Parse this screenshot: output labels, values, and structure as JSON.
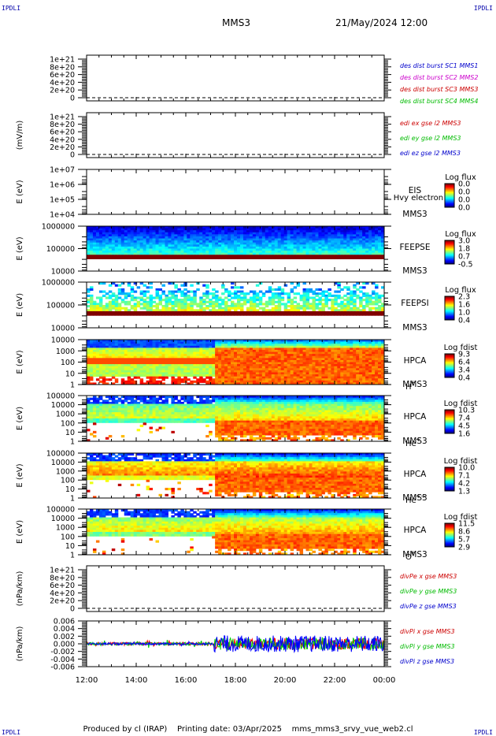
{
  "header": {
    "corner_tl": "IPDLI",
    "corner_tr": "IPDLI",
    "corner_bl": "IPDLI",
    "corner_br": "IPDLI",
    "spacecraft": "MMS3",
    "date": "21/May/2024 12:00"
  },
  "footer": {
    "text": "Produced by cl (IRAP)    Printing date: 03/Apr/2025    mms_mms3_srvy_vue_web2.cl"
  },
  "chart_data": [
    {
      "type": "line",
      "id": "p1",
      "ylabel": "",
      "yticks": [
        "1e+21",
        "8e+20",
        "6e+20",
        "4e+20",
        "2e+20",
        "0"
      ],
      "ylim": [
        0,
        1e+21
      ],
      "dashed_zero": true,
      "legend": [
        {
          "label": "des dist burst SC1 MMS1",
          "color": "#0000cc"
        },
        {
          "label": "des dist burst SC2 MMS2",
          "color": "#cc00cc"
        },
        {
          "label": "des dist burst SC3 MMS3",
          "color": "#cc0000"
        },
        {
          "label": "des dist burst SC4 MMS4",
          "color": "#00bb00"
        }
      ]
    },
    {
      "type": "line",
      "id": "p2",
      "ylabel": "(mV/m)",
      "yticks": [
        "1e+21",
        "8e+20",
        "6e+20",
        "4e+20",
        "2e+20",
        "0"
      ],
      "ylim": [
        0,
        1e+21
      ],
      "dashed_zero": true,
      "legend": [
        {
          "label": "edi ex gse l2 MMS3",
          "color": "#cc0000"
        },
        {
          "label": "edi ey gse l2 MMS3",
          "color": "#00bb00"
        },
        {
          "label": "edi ez gse l2 MMS3",
          "color": "#0000cc"
        }
      ]
    },
    {
      "type": "heatmap",
      "id": "p3",
      "ylabel": "E (eV)",
      "yticks": [
        "1e+07",
        "1e+06",
        "1e+05",
        "1e+04"
      ],
      "instrument": "EIS",
      "species": "Hvy electron to",
      "spacecraft": "MMS3",
      "colorbar_title": "Log flux",
      "colorbar_ticks": [
        "0.0",
        "0.0",
        "0.0",
        "0.0"
      ],
      "empty": true
    },
    {
      "type": "heatmap",
      "id": "p4",
      "ylabel": "E (eV)",
      "yticks": [
        "1000000",
        "100000",
        "10000"
      ],
      "instrument": "FEEPSE",
      "spacecraft": "MMS3",
      "colorbar_title": "Log flux",
      "colorbar_ticks": [
        "3.0",
        "1.8",
        "0.7",
        "-0.5"
      ]
    },
    {
      "type": "heatmap",
      "id": "p5",
      "ylabel": "E (eV)",
      "yticks": [
        "1000000",
        "100000",
        "10000"
      ],
      "instrument": "FEEPSI",
      "spacecraft": "MMS3",
      "colorbar_title": "Log flux",
      "colorbar_ticks": [
        "2.3",
        "1.6",
        "1.0",
        "0.4"
      ]
    },
    {
      "type": "heatmap",
      "id": "p6",
      "ylabel": "E (eV)",
      "yticks": [
        "10000",
        "1000",
        "100",
        "10",
        "1"
      ],
      "instrument": "HPCA",
      "spacecraft": "MMS3",
      "species": "H",
      "species_sup": "+",
      "colorbar_title": "Log fdist",
      "colorbar_ticks": [
        "9.3",
        "6.4",
        "3.4",
        "0.4"
      ]
    },
    {
      "type": "heatmap",
      "id": "p7",
      "ylabel": "E (eV)",
      "yticks": [
        "100000",
        "10000",
        "1000",
        "100",
        "10",
        "1"
      ],
      "instrument": "HPCA",
      "spacecraft": "MMS3",
      "species": "He",
      "species_sup": "+",
      "colorbar_title": "Log fdist",
      "colorbar_ticks": [
        "10.3",
        "7.4",
        "4.5",
        "1.6"
      ]
    },
    {
      "type": "heatmap",
      "id": "p8",
      "ylabel": "E (eV)",
      "yticks": [
        "100000",
        "10000",
        "1000",
        "100",
        "10",
        "1"
      ],
      "instrument": "HPCA",
      "spacecraft": "MMS3",
      "species": "He",
      "species_sup": "++",
      "colorbar_title": "Log fdist",
      "colorbar_ticks": [
        "10.0",
        "7.1",
        "4.2",
        "1.3"
      ]
    },
    {
      "type": "heatmap",
      "id": "p9",
      "ylabel": "E (eV)",
      "yticks": [
        "100000",
        "10000",
        "1000",
        "100",
        "10",
        "1"
      ],
      "instrument": "HPCA",
      "spacecraft": "MMS3",
      "species": "O",
      "species_sup": "+",
      "colorbar_title": "Log fdist",
      "colorbar_ticks": [
        "11.5",
        "8.6",
        "5.7",
        "2.9"
      ]
    },
    {
      "type": "line",
      "id": "p10",
      "ylabel": "(nPa/km)",
      "yticks": [
        "1e+21",
        "8e+20",
        "6e+20",
        "4e+20",
        "2e+20",
        "0"
      ],
      "ylim": [
        0,
        1e+21
      ],
      "dashed_zero": true,
      "legend": [
        {
          "label": "divPe x gse MMS3",
          "color": "#cc0000"
        },
        {
          "label": "divPe y gse MMS3",
          "color": "#00bb00"
        },
        {
          "label": "divPe z gse MMS3",
          "color": "#0000cc"
        }
      ]
    },
    {
      "type": "line",
      "id": "p11",
      "ylabel": "(nPa/km)",
      "yticks": [
        "0.006",
        "0.004",
        "0.002",
        "0.000",
        "-0.002",
        "-0.004",
        "-0.006"
      ],
      "ylim": [
        -0.006,
        0.006
      ],
      "x": [
        "12:00",
        "14:00",
        "16:00",
        "18:00",
        "20:00",
        "22:00",
        "00:00"
      ],
      "series": [
        {
          "name": "divPi x gse MMS3",
          "color": "#ff0000",
          "quiet_amp": 0.0004,
          "active_amp": 0.0015
        },
        {
          "name": "divPi y gse MMS3",
          "color": "#00cc00",
          "quiet_amp": 0.0004,
          "active_amp": 0.0016
        },
        {
          "name": "divPi z gse MMS3",
          "color": "#0000ff",
          "quiet_amp": 0.0003,
          "active_amp": 0.0022
        }
      ],
      "transition_time": "17:08",
      "legend": [
        {
          "label": "divPi x gse MMS3",
          "color": "#cc0000"
        },
        {
          "label": "divPi y gse MMS3",
          "color": "#00bb00"
        },
        {
          "label": "divPi z gse MMS3",
          "color": "#0000cc"
        }
      ]
    }
  ],
  "x_axis": {
    "ticks": [
      "12:00",
      "14:00",
      "16:00",
      "18:00",
      "20:00",
      "22:00",
      "00:00"
    ],
    "range": [
      "12:00",
      "00:00"
    ],
    "transition_time": "17:08"
  }
}
